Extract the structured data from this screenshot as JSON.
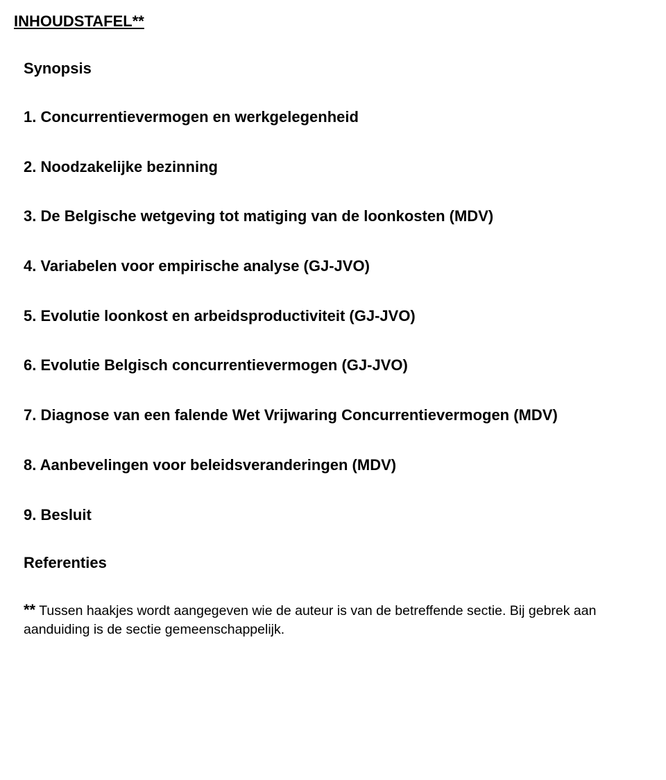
{
  "title": "INHOUDSTAFEL**",
  "synopsis": "Synopsis",
  "toc": [
    "1.  Concurrentievermogen en werkgelegenheid",
    "2.  Noodzakelijke bezinning",
    "3.  De Belgische wetgeving tot matiging van de loonkosten (MDV)",
    "4.  Variabelen voor empirische analyse (GJ-JVO)",
    "5.  Evolutie loonkost en arbeidsproductiviteit (GJ-JVO)",
    "6.  Evolutie Belgisch concurrentievermogen (GJ-JVO)",
    "7.  Diagnose van een falende Wet Vrijwaring Concurrentievermogen (MDV)",
    "8.  Aanbevelingen voor beleidsveranderingen (MDV)",
    "9.  Besluit"
  ],
  "references": "Referenties",
  "footnote_stars": "**",
  "footnote_text": " Tussen haakjes wordt aangegeven wie de auteur is van de betreffende sectie. Bij gebrek aan aanduiding is de sectie gemeenschappelijk."
}
